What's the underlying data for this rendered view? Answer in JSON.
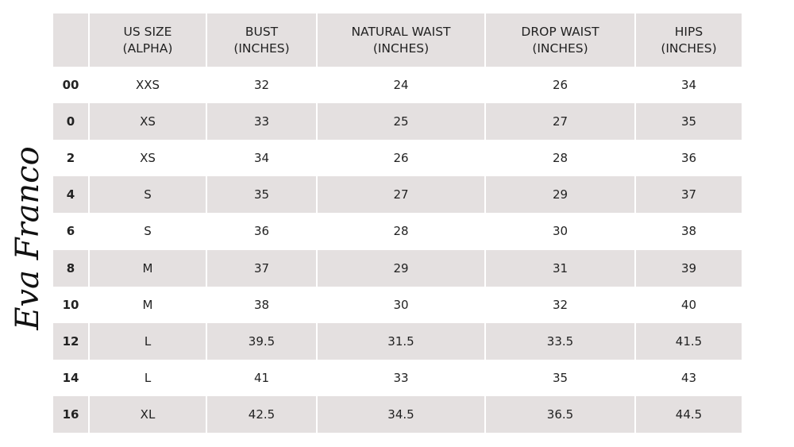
{
  "logo": "Eva Franco",
  "table": {
    "header": [
      [
        "US SIZE",
        "(ALPHA)"
      ],
      [
        "BUST",
        "(INCHES)"
      ],
      [
        "NATURAL WAIST",
        "(INCHES)"
      ],
      [
        "DROP WAIST",
        "(INCHES)"
      ],
      [
        "HIPS",
        "(INCHES)"
      ]
    ],
    "rows": [
      [
        "00",
        "XXS",
        32,
        24,
        26,
        34
      ],
      [
        "0",
        "XS",
        33,
        25,
        27,
        35
      ],
      [
        "2",
        "XS",
        34,
        26,
        28,
        36
      ],
      [
        "4",
        "S",
        35,
        27,
        29,
        37
      ],
      [
        "6",
        "S",
        36,
        28,
        30,
        38
      ],
      [
        "8",
        "M",
        37,
        29,
        31,
        39
      ],
      [
        "10",
        "M",
        38,
        30,
        32,
        40
      ],
      [
        "12",
        "L",
        39.5,
        31.5,
        33.5,
        41.5
      ],
      [
        "14",
        "L",
        41,
        33,
        35,
        43
      ],
      [
        "16",
        "XL",
        42.5,
        34.5,
        36.5,
        44.5
      ]
    ]
  }
}
